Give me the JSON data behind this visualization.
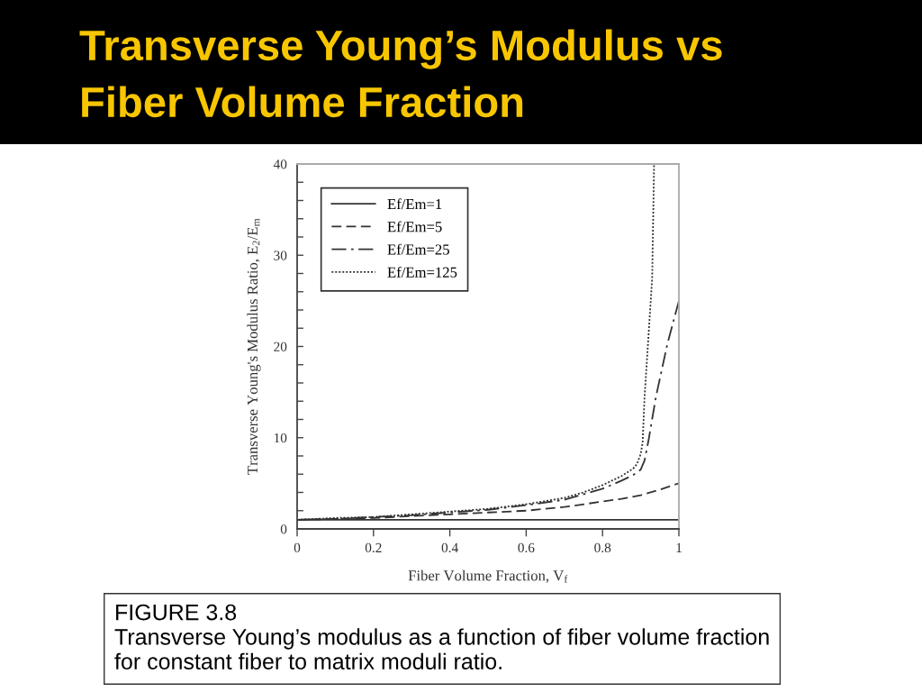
{
  "chart_data": {
    "type": "line",
    "title": "Transverse Young’s Modulus vs\nFiber Volume Fraction",
    "xlabel": "Fiber Volume Fraction, V$_{f}$",
    "ylabel": "Transverse Young's Modulus Ratio, E$_{2}$/E$_{m}$",
    "annotations": [
      "FIGURE 3.8\nTransverse Young’s modulus as a function of fiber volume fraction\nfor constant fiber to matrix moduli ratio."
    ],
    "xlim": [
      0,
      1
    ],
    "xticks": [
      0,
      0.2,
      0.4,
      0.6,
      0.8,
      1
    ],
    "ylim": [
      0,
      40
    ],
    "yticks": [
      0,
      {
        "value": 2,
        "label": null
      },
      {
        "value": 4,
        "label": null
      },
      {
        "value": 6,
        "label": null
      },
      {
        "value": 8,
        "label": null
      },
      10,
      {
        "value": 12,
        "label": null
      },
      {
        "value": 14,
        "label": null
      },
      {
        "value": 16,
        "label": null
      },
      {
        "value": 18,
        "label": null
      },
      20,
      {
        "value": 22,
        "label": null
      },
      {
        "value": 24,
        "label": null
      },
      {
        "value": 26,
        "label": null
      },
      {
        "value": 28,
        "label": null
      },
      30,
      {
        "value": 32,
        "label": null
      },
      {
        "value": 34,
        "label": null
      },
      {
        "value": 36,
        "label": null
      },
      {
        "value": 38,
        "label": null
      },
      40
    ],
    "grid": false,
    "legend": "top left",
    "series": [
      {
        "name": "Ef/Em=1",
        "color": "#333333",
        "line_style": "solid",
        "x": [
          0,
          1
        ],
        "values": [
          1,
          1
        ]
      },
      {
        "name": "Ef/Em=5",
        "color": "#333333",
        "line_style": "dashed",
        "x": [
          0,
          0.1,
          0.2,
          0.3,
          0.4,
          0.5,
          0.6,
          0.7,
          0.8,
          0.85,
          0.9,
          0.95,
          1
        ],
        "values": [
          1,
          1.1,
          1.2,
          1.4,
          1.6,
          1.8,
          2,
          2.4,
          3,
          3.3,
          3.7,
          4.3,
          5
        ]
      },
      {
        "name": "Ef/Em=25",
        "color": "#333333",
        "line_style": "dashdot",
        "x": [
          0,
          0.1,
          0.2,
          0.3,
          0.4,
          0.5,
          0.6,
          0.7,
          0.75,
          0.8,
          0.85,
          0.88,
          0.9,
          0.91,
          0.92,
          0.94,
          0.97,
          1
        ],
        "values": [
          1,
          1.1,
          1.3,
          1.5,
          1.8,
          2.1,
          2.6,
          3.2,
          3.8,
          4.4,
          5.3,
          5.9,
          6.5,
          7.5,
          9.6,
          14.5,
          20.3,
          25
        ]
      },
      {
        "name": "Ef/Em=125",
        "color": "#333333",
        "line_style": "dotted",
        "x": [
          0,
          0.1,
          0.2,
          0.3,
          0.4,
          0.5,
          0.6,
          0.7,
          0.75,
          0.8,
          0.85,
          0.88,
          0.89,
          0.9,
          0.905,
          0.91,
          0.92,
          0.93,
          0.935
        ],
        "values": [
          1,
          1.2,
          1.3,
          1.6,
          1.9,
          2.2,
          2.7,
          3.4,
          4,
          4.8,
          5.8,
          6.6,
          7.1,
          8.2,
          9.5,
          14.4,
          20.9,
          27.5,
          40
        ]
      }
    ]
  }
}
